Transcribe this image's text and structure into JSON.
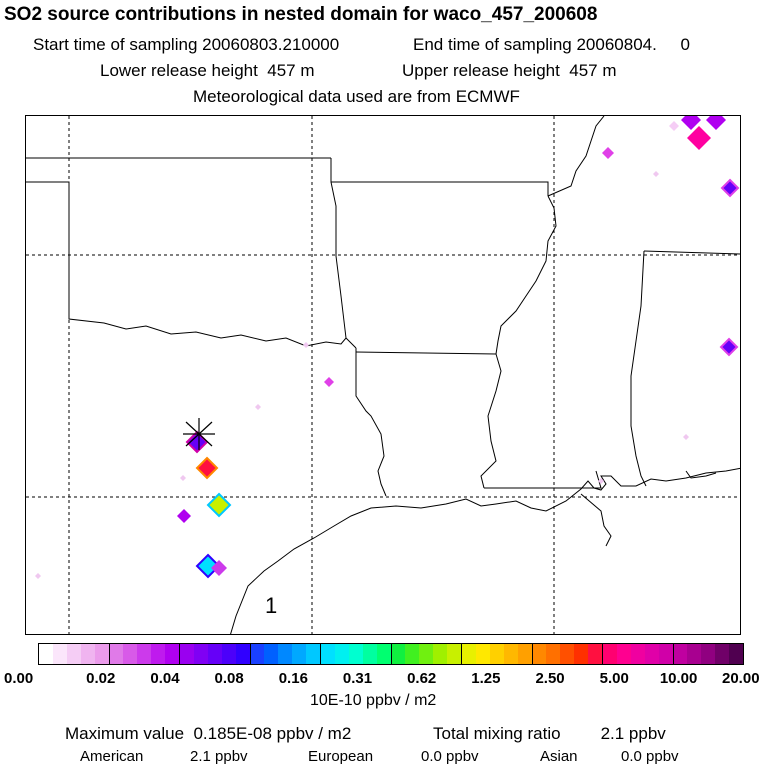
{
  "header": {
    "title": "SO2 source contributions in nested domain for waco_457_200608",
    "start_time": "Start time of sampling 20060803.210000",
    "end_time": "End time of sampling 20060804.     0",
    "lower_height": "Lower release height  457 m",
    "upper_height": "Upper release height  457 m",
    "met_data": "Meteorological data used are from ECMWF"
  },
  "map": {
    "region_label": "1",
    "source_marker": "asterisk-marker"
  },
  "colorbar": {
    "ticks": [
      "0.00",
      "0.02",
      "0.04",
      "0.08",
      "0.16",
      "0.31",
      "0.62",
      "1.25",
      "2.50",
      "5.00",
      "10.00",
      "20.00"
    ],
    "colors": [
      [
        "#ffffff",
        "#fbe6fb",
        "#f5cdf5",
        "#f0b4f0",
        "#eb9beb"
      ],
      [
        "#e07ae8",
        "#d85ae8",
        "#cc3aeb",
        "#bf1aee",
        "#b000f0"
      ],
      [
        "#9a00f0",
        "#8000f4",
        "#6600f8",
        "#4c00fa",
        "#3000ff"
      ],
      [
        "#1a40ff",
        "#0060ff",
        "#0088ff",
        "#00a8ff",
        "#00c8ff"
      ],
      [
        "#00e0ff",
        "#00f0f0",
        "#00ffd0",
        "#00ffa0",
        "#00ff70"
      ],
      [
        "#10f040",
        "#40f020",
        "#70f010",
        "#a0f000",
        "#c8f000"
      ],
      [
        "#e8f000",
        "#ffe800",
        "#ffd000",
        "#ffb800",
        "#ffa000"
      ],
      [
        "#ff8800",
        "#ff7000",
        "#ff5000",
        "#ff3000",
        "#ff1040"
      ],
      [
        "#ff0070",
        "#ff0090",
        "#f000a0",
        "#e000a8",
        "#d000a8"
      ],
      [
        "#c000a0",
        "#a80090",
        "#900080",
        "#700068",
        "#500050"
      ]
    ],
    "units": "10E-10 ppbv / m2"
  },
  "summary": {
    "max_value": "Maximum value  0.185E-08 ppbv / m2",
    "total_mixing_label": "Total mixing ratio",
    "total_mixing_value": "2.1 ppbv",
    "american_label": "American",
    "american_value": "2.1 ppbv",
    "european_label": "European",
    "european_value": "0.0 ppbv",
    "asian_label": "Asian",
    "asian_value": "0.0 ppbv"
  }
}
